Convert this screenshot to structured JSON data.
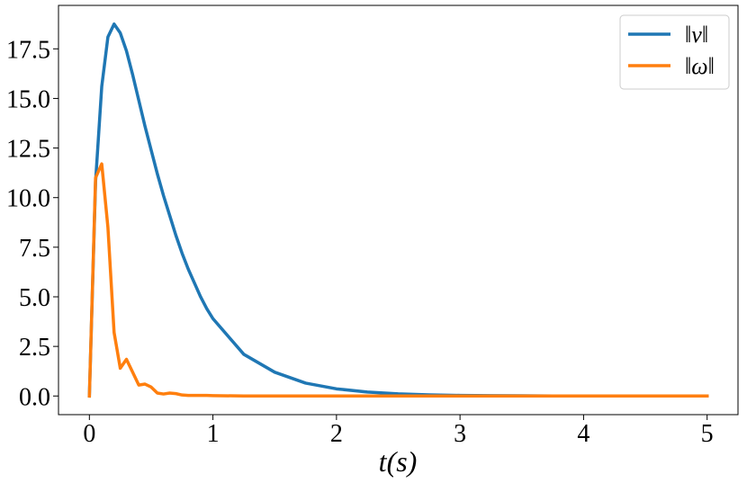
{
  "chart_data": {
    "type": "line",
    "xlabel": "t(s)",
    "x": [
      0,
      0.05,
      0.1,
      0.15,
      0.2,
      0.25,
      0.3,
      0.35,
      0.4,
      0.45,
      0.5,
      0.55,
      0.6,
      0.65,
      0.7,
      0.75,
      0.8,
      0.85,
      0.9,
      0.95,
      1.0,
      1.25,
      1.5,
      1.75,
      2.0,
      2.25,
      2.5,
      2.75,
      3.0,
      3.25,
      3.5,
      3.75,
      4.0,
      4.25,
      4.5,
      4.75,
      5.0
    ],
    "series": [
      {
        "name": "‖v‖",
        "color": "#1f77b4",
        "values": [
          0,
          10.8,
          15.6,
          18.1,
          18.75,
          18.3,
          17.4,
          16.2,
          14.9,
          13.6,
          12.4,
          11.2,
          10.1,
          9.1,
          8.1,
          7.2,
          6.4,
          5.7,
          5.0,
          4.4,
          3.9,
          2.1,
          1.2,
          0.65,
          0.36,
          0.2,
          0.11,
          0.06,
          0.03,
          0.02,
          0.01,
          0,
          0,
          0,
          0,
          0,
          0
        ]
      },
      {
        "name": "‖ω‖",
        "color": "#ff7f0e",
        "values": [
          0,
          11.0,
          11.7,
          8.5,
          3.2,
          1.4,
          1.85,
          1.2,
          0.55,
          0.6,
          0.45,
          0.15,
          0.1,
          0.15,
          0.12,
          0.05,
          0.03,
          0.03,
          0.03,
          0.03,
          0.02,
          0,
          0,
          0,
          0,
          0,
          0,
          0,
          0,
          0,
          0,
          0,
          0,
          0,
          0,
          0,
          0
        ]
      }
    ],
    "xlim": [
      -0.25,
      5.25
    ],
    "ylim": [
      -0.94,
      19.69
    ],
    "xticks": [
      0,
      1,
      2,
      3,
      4,
      5
    ],
    "yticks": [
      {
        "value": 0,
        "label": "0.0"
      },
      2.5,
      {
        "value": 5,
        "label": "5.0"
      },
      7.5,
      {
        "value": 10,
        "label": "10.0"
      },
      12.5,
      {
        "value": 15,
        "label": "15.0"
      },
      17.5
    ],
    "legend": "upper right"
  }
}
